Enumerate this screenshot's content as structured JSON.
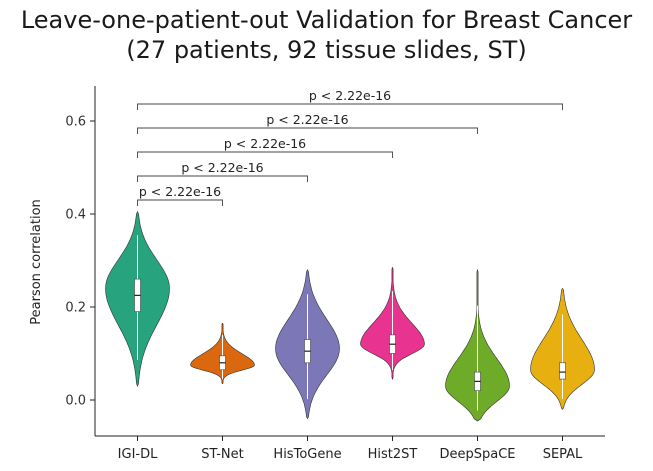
{
  "chart_data": {
    "type": "violin",
    "title": "Leave-one-patient-out Validation for Breast Cancer",
    "subtitle": "(27 patients, 92 tissue slides, ST)",
    "xlabel": "",
    "ylabel": "Pearson correlation",
    "ylim": [
      -0.07,
      0.68
    ],
    "yticks": [
      0.0,
      0.2,
      0.4,
      0.6
    ],
    "ytick_labels": [
      "0.0",
      "0.2",
      "0.4",
      "0.6"
    ],
    "grid": false,
    "categories": [
      "IGI-DL",
      "ST-Net",
      "HisToGene",
      "Hist2ST",
      "DeepSpaCE",
      "SEPAL"
    ],
    "series": [
      {
        "color": "#1b9e77",
        "min": 0.03,
        "q1": 0.19,
        "median": 0.225,
        "q3": 0.26,
        "max": 0.405,
        "mode": 0.24,
        "spread": "wide"
      },
      {
        "color": "#d95f02",
        "min": 0.035,
        "q1": 0.065,
        "median": 0.08,
        "q3": 0.095,
        "max": 0.165,
        "mode": 0.075,
        "spread": "squat"
      },
      {
        "color": "#7570b3",
        "min": -0.04,
        "q1": 0.08,
        "median": 0.105,
        "q3": 0.13,
        "max": 0.28,
        "mode": 0.11,
        "spread": "wide"
      },
      {
        "color": "#e7298a",
        "min": 0.045,
        "q1": 0.1,
        "median": 0.12,
        "q3": 0.14,
        "max": 0.285,
        "mode": 0.12,
        "spread": "squat"
      },
      {
        "color": "#66a61e",
        "min": -0.045,
        "q1": 0.02,
        "median": 0.04,
        "q3": 0.06,
        "max": 0.28,
        "mode": 0.03,
        "spread": "skew"
      },
      {
        "color": "#e6ab02",
        "min": -0.02,
        "q1": 0.045,
        "median": 0.06,
        "q3": 0.08,
        "max": 0.24,
        "mode": 0.065,
        "spread": "wide"
      }
    ],
    "comparisons": [
      {
        "from": "IGI-DL",
        "to": "ST-Net",
        "label": "p < 2.22e-16"
      },
      {
        "from": "IGI-DL",
        "to": "HisToGene",
        "label": "p < 2.22e-16"
      },
      {
        "from": "IGI-DL",
        "to": "Hist2ST",
        "label": "p < 2.22e-16"
      },
      {
        "from": "IGI-DL",
        "to": "DeepSpaCE",
        "label": "p < 2.22e-16"
      },
      {
        "from": "IGI-DL",
        "to": "SEPAL",
        "label": "p < 2.22e-16"
      }
    ]
  }
}
